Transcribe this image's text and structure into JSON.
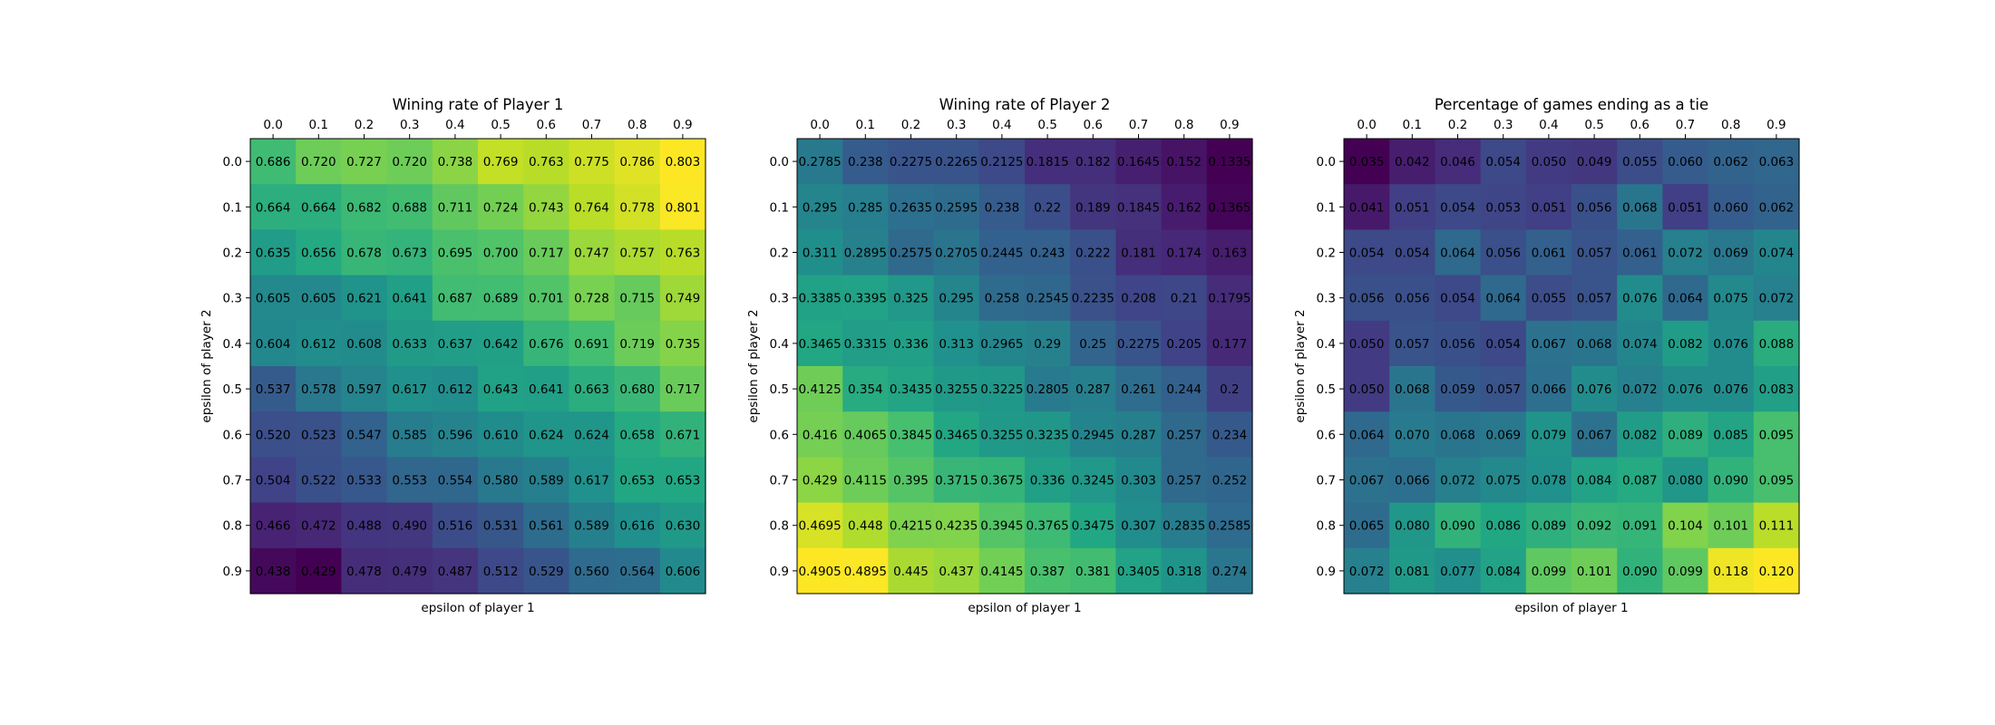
{
  "chart_data": [
    {
      "type": "heatmap",
      "title": "Wining rate of Player 1",
      "xlabel": "epsilon of player 1",
      "ylabel": "epsilon of player 2",
      "x_ticks": [
        "0.0",
        "0.1",
        "0.2",
        "0.3",
        "0.4",
        "0.5",
        "0.6",
        "0.7",
        "0.8",
        "0.9"
      ],
      "y_ticks": [
        "0.0",
        "0.1",
        "0.2",
        "0.3",
        "0.4",
        "0.5",
        "0.6",
        "0.7",
        "0.8",
        "0.9"
      ],
      "colormap": "viridis",
      "values": [
        [
          0.686,
          0.72,
          0.727,
          0.72,
          0.738,
          0.769,
          0.763,
          0.775,
          0.786,
          0.803
        ],
        [
          0.664,
          0.664,
          0.682,
          0.688,
          0.711,
          0.724,
          0.743,
          0.764,
          0.778,
          0.801
        ],
        [
          0.635,
          0.656,
          0.678,
          0.673,
          0.695,
          0.7,
          0.717,
          0.747,
          0.757,
          0.763
        ],
        [
          0.605,
          0.605,
          0.621,
          0.641,
          0.687,
          0.689,
          0.701,
          0.728,
          0.715,
          0.749
        ],
        [
          0.604,
          0.612,
          0.608,
          0.633,
          0.637,
          0.642,
          0.676,
          0.691,
          0.719,
          0.735
        ],
        [
          0.537,
          0.578,
          0.597,
          0.617,
          0.612,
          0.643,
          0.641,
          0.663,
          0.68,
          0.717
        ],
        [
          0.52,
          0.523,
          0.547,
          0.585,
          0.596,
          0.61,
          0.624,
          0.624,
          0.658,
          0.671
        ],
        [
          0.504,
          0.522,
          0.533,
          0.553,
          0.554,
          0.58,
          0.589,
          0.617,
          0.653,
          0.653
        ],
        [
          0.466,
          0.472,
          0.488,
          0.49,
          0.516,
          0.531,
          0.561,
          0.589,
          0.616,
          0.63
        ],
        [
          0.438,
          0.429,
          0.478,
          0.479,
          0.487,
          0.512,
          0.529,
          0.56,
          0.564,
          0.606
        ]
      ],
      "labels": [
        [
          "0.686",
          "0.720",
          "0.727",
          "0.720",
          "0.738",
          "0.769",
          "0.763",
          "0.775",
          "0.786",
          "0.803"
        ],
        [
          "0.664",
          "0.664",
          "0.682",
          "0.688",
          "0.711",
          "0.724",
          "0.743",
          "0.764",
          "0.778",
          "0.801"
        ],
        [
          "0.635",
          "0.656",
          "0.678",
          "0.673",
          "0.695",
          "0.700",
          "0.717",
          "0.747",
          "0.757",
          "0.763"
        ],
        [
          "0.605",
          "0.605",
          "0.621",
          "0.641",
          "0.687",
          "0.689",
          "0.701",
          "0.728",
          "0.715",
          "0.749"
        ],
        [
          "0.604",
          "0.612",
          "0.608",
          "0.633",
          "0.637",
          "0.642",
          "0.676",
          "0.691",
          "0.719",
          "0.735"
        ],
        [
          "0.537",
          "0.578",
          "0.597",
          "0.617",
          "0.612",
          "0.643",
          "0.641",
          "0.663",
          "0.680",
          "0.717"
        ],
        [
          "0.520",
          "0.523",
          "0.547",
          "0.585",
          "0.596",
          "0.610",
          "0.624",
          "0.624",
          "0.658",
          "0.671"
        ],
        [
          "0.504",
          "0.522",
          "0.533",
          "0.553",
          "0.554",
          "0.580",
          "0.589",
          "0.617",
          "0.653",
          "0.653"
        ],
        [
          "0.466",
          "0.472",
          "0.488",
          "0.490",
          "0.516",
          "0.531",
          "0.561",
          "0.589",
          "0.616",
          "0.630"
        ],
        [
          "0.438",
          "0.429",
          "0.478",
          "0.479",
          "0.487",
          "0.512",
          "0.529",
          "0.560",
          "0.564",
          "0.606"
        ]
      ]
    },
    {
      "type": "heatmap",
      "title": "Wining rate of Player 2",
      "xlabel": "epsilon of player 1",
      "ylabel": "epsilon of player 2",
      "x_ticks": [
        "0.0",
        "0.1",
        "0.2",
        "0.3",
        "0.4",
        "0.5",
        "0.6",
        "0.7",
        "0.8",
        "0.9"
      ],
      "y_ticks": [
        "0.0",
        "0.1",
        "0.2",
        "0.3",
        "0.4",
        "0.5",
        "0.6",
        "0.7",
        "0.8",
        "0.9"
      ],
      "colormap": "viridis",
      "values": [
        [
          0.2785,
          0.238,
          0.2275,
          0.2265,
          0.2125,
          0.1815,
          0.182,
          0.1645,
          0.152,
          0.1335
        ],
        [
          0.295,
          0.285,
          0.2635,
          0.2595,
          0.238,
          0.22,
          0.189,
          0.1845,
          0.162,
          0.1365
        ],
        [
          0.311,
          0.2895,
          0.2575,
          0.2705,
          0.2445,
          0.243,
          0.222,
          0.181,
          0.174,
          0.163
        ],
        [
          0.3385,
          0.3395,
          0.325,
          0.295,
          0.258,
          0.2545,
          0.2235,
          0.208,
          0.21,
          0.1795
        ],
        [
          0.3465,
          0.3315,
          0.336,
          0.313,
          0.2965,
          0.29,
          0.25,
          0.2275,
          0.205,
          0.177
        ],
        [
          0.4125,
          0.354,
          0.3435,
          0.3255,
          0.3225,
          0.2805,
          0.287,
          0.261,
          0.244,
          0.2
        ],
        [
          0.416,
          0.4065,
          0.3845,
          0.3465,
          0.3255,
          0.3235,
          0.2945,
          0.287,
          0.257,
          0.234
        ],
        [
          0.429,
          0.4115,
          0.395,
          0.3715,
          0.3675,
          0.336,
          0.3245,
          0.303,
          0.257,
          0.252
        ],
        [
          0.4695,
          0.448,
          0.4215,
          0.4235,
          0.3945,
          0.3765,
          0.3475,
          0.307,
          0.2835,
          0.2585
        ],
        [
          0.4905,
          0.4895,
          0.445,
          0.437,
          0.4145,
          0.387,
          0.381,
          0.3405,
          0.318,
          0.274
        ]
      ],
      "labels": [
        [
          "0.2785",
          "0.238",
          "0.2275",
          "0.2265",
          "0.2125",
          "0.1815",
          "0.182",
          "0.1645",
          "0.152",
          "0.1335"
        ],
        [
          "0.295",
          "0.285",
          "0.2635",
          "0.2595",
          "0.238",
          "0.22",
          "0.189",
          "0.1845",
          "0.162",
          "0.1365"
        ],
        [
          "0.311",
          "0.2895",
          "0.2575",
          "0.2705",
          "0.2445",
          "0.243",
          "0.222",
          "0.181",
          "0.174",
          "0.163"
        ],
        [
          "0.3385",
          "0.3395",
          "0.325",
          "0.295",
          "0.258",
          "0.2545",
          "0.2235",
          "0.208",
          "0.21",
          "0.1795"
        ],
        [
          "0.3465",
          "0.3315",
          "0.336",
          "0.313",
          "0.2965",
          "0.29",
          "0.25",
          "0.2275",
          "0.205",
          "0.177"
        ],
        [
          "0.4125",
          "0.354",
          "0.3435",
          "0.3255",
          "0.3225",
          "0.2805",
          "0.287",
          "0.261",
          "0.244",
          "0.2"
        ],
        [
          "0.416",
          "0.4065",
          "0.3845",
          "0.3465",
          "0.3255",
          "0.3235",
          "0.2945",
          "0.287",
          "0.257",
          "0.234"
        ],
        [
          "0.429",
          "0.4115",
          "0.395",
          "0.3715",
          "0.3675",
          "0.336",
          "0.3245",
          "0.303",
          "0.257",
          "0.252"
        ],
        [
          "0.4695",
          "0.448",
          "0.4215",
          "0.4235",
          "0.3945",
          "0.3765",
          "0.3475",
          "0.307",
          "0.2835",
          "0.2585"
        ],
        [
          "0.4905",
          "0.4895",
          "0.445",
          "0.437",
          "0.4145",
          "0.387",
          "0.381",
          "0.3405",
          "0.318",
          "0.274"
        ]
      ]
    },
    {
      "type": "heatmap",
      "title": "Percentage of games ending as a tie",
      "xlabel": "epsilon of player 1",
      "ylabel": "epsilon of player 2",
      "x_ticks": [
        "0.0",
        "0.1",
        "0.2",
        "0.3",
        "0.4",
        "0.5",
        "0.6",
        "0.7",
        "0.8",
        "0.9"
      ],
      "y_ticks": [
        "0.0",
        "0.1",
        "0.2",
        "0.3",
        "0.4",
        "0.5",
        "0.6",
        "0.7",
        "0.8",
        "0.9"
      ],
      "colormap": "viridis",
      "values": [
        [
          0.035,
          0.042,
          0.046,
          0.054,
          0.05,
          0.049,
          0.055,
          0.06,
          0.062,
          0.063
        ],
        [
          0.041,
          0.051,
          0.054,
          0.053,
          0.051,
          0.056,
          0.068,
          0.051,
          0.06,
          0.062
        ],
        [
          0.054,
          0.054,
          0.064,
          0.056,
          0.061,
          0.057,
          0.061,
          0.072,
          0.069,
          0.074
        ],
        [
          0.056,
          0.056,
          0.054,
          0.064,
          0.055,
          0.057,
          0.076,
          0.064,
          0.075,
          0.072
        ],
        [
          0.05,
          0.057,
          0.056,
          0.054,
          0.067,
          0.068,
          0.074,
          0.082,
          0.076,
          0.088
        ],
        [
          0.05,
          0.068,
          0.059,
          0.057,
          0.066,
          0.076,
          0.072,
          0.076,
          0.076,
          0.083
        ],
        [
          0.064,
          0.07,
          0.068,
          0.069,
          0.079,
          0.067,
          0.082,
          0.089,
          0.085,
          0.095
        ],
        [
          0.067,
          0.066,
          0.072,
          0.075,
          0.078,
          0.084,
          0.087,
          0.08,
          0.09,
          0.095
        ],
        [
          0.065,
          0.08,
          0.09,
          0.086,
          0.089,
          0.092,
          0.091,
          0.104,
          0.101,
          0.111
        ],
        [
          0.072,
          0.081,
          0.077,
          0.084,
          0.099,
          0.101,
          0.09,
          0.099,
          0.118,
          0.12
        ]
      ],
      "labels": [
        [
          "0.035",
          "0.042",
          "0.046",
          "0.054",
          "0.050",
          "0.049",
          "0.055",
          "0.060",
          "0.062",
          "0.063"
        ],
        [
          "0.041",
          "0.051",
          "0.054",
          "0.053",
          "0.051",
          "0.056",
          "0.068",
          "0.051",
          "0.060",
          "0.062"
        ],
        [
          "0.054",
          "0.054",
          "0.064",
          "0.056",
          "0.061",
          "0.057",
          "0.061",
          "0.072",
          "0.069",
          "0.074"
        ],
        [
          "0.056",
          "0.056",
          "0.054",
          "0.064",
          "0.055",
          "0.057",
          "0.076",
          "0.064",
          "0.075",
          "0.072"
        ],
        [
          "0.050",
          "0.057",
          "0.056",
          "0.054",
          "0.067",
          "0.068",
          "0.074",
          "0.082",
          "0.076",
          "0.088"
        ],
        [
          "0.050",
          "0.068",
          "0.059",
          "0.057",
          "0.066",
          "0.076",
          "0.072",
          "0.076",
          "0.076",
          "0.083"
        ],
        [
          "0.064",
          "0.070",
          "0.068",
          "0.069",
          "0.079",
          "0.067",
          "0.082",
          "0.089",
          "0.085",
          "0.095"
        ],
        [
          "0.067",
          "0.066",
          "0.072",
          "0.075",
          "0.078",
          "0.084",
          "0.087",
          "0.080",
          "0.090",
          "0.095"
        ],
        [
          "0.065",
          "0.080",
          "0.090",
          "0.086",
          "0.089",
          "0.092",
          "0.091",
          "0.104",
          "0.101",
          "0.111"
        ],
        [
          "0.072",
          "0.081",
          "0.077",
          "0.084",
          "0.099",
          "0.101",
          "0.090",
          "0.099",
          "0.118",
          "0.120"
        ]
      ]
    }
  ]
}
